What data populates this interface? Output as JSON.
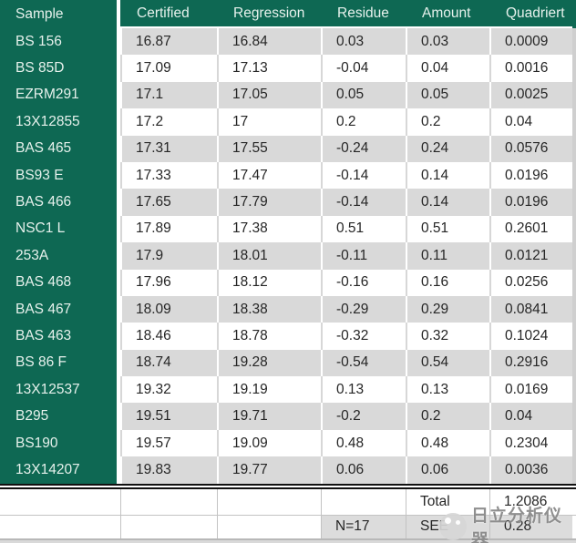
{
  "colors": {
    "green": "#0E6853",
    "row_gray": "#D9D9D9",
    "header_text": "#E6F1EC",
    "text": "#262626"
  },
  "table": {
    "headers": [
      "Sample",
      "Certified",
      "Regression",
      "Residue",
      "Amount",
      "Quadriert"
    ],
    "rows": [
      [
        "BS 156",
        "16.87",
        "16.84",
        "0.03",
        "0.03",
        "0.0009"
      ],
      [
        "BS 85D",
        "17.09",
        "17.13",
        "-0.04",
        "0.04",
        "0.0016"
      ],
      [
        "EZRM291",
        "17.1",
        "17.05",
        "0.05",
        "0.05",
        "0.0025"
      ],
      [
        "13X12855",
        "17.2",
        "17",
        "0.2",
        "0.2",
        "0.04"
      ],
      [
        "BAS 465",
        "17.31",
        "17.55",
        "-0.24",
        "0.24",
        "0.0576"
      ],
      [
        "BS93 E",
        "17.33",
        "17.47",
        "-0.14",
        "0.14",
        "0.0196"
      ],
      [
        "BAS 466",
        "17.65",
        "17.79",
        "-0.14",
        "0.14",
        "0.0196"
      ],
      [
        "NSC1 L",
        "17.89",
        "17.38",
        "0.51",
        "0.51",
        "0.2601"
      ],
      [
        "253A",
        "17.9",
        "18.01",
        "-0.11",
        "0.11",
        "0.0121"
      ],
      [
        "BAS 468",
        "17.96",
        "18.12",
        "-0.16",
        "0.16",
        "0.0256"
      ],
      [
        "BAS 467",
        "18.09",
        "18.38",
        "-0.29",
        "0.29",
        "0.0841"
      ],
      [
        "BAS 463",
        "18.46",
        "18.78",
        "-0.32",
        "0.32",
        "0.1024"
      ],
      [
        "BS 86 F",
        "18.74",
        "19.28",
        "-0.54",
        "0.54",
        "0.2916"
      ],
      [
        "13X12537",
        "19.32",
        "19.19",
        "0.13",
        "0.13",
        "0.0169"
      ],
      [
        "B295",
        "19.51",
        "19.71",
        "-0.2",
        "0.2",
        "0.04"
      ],
      [
        "BS190",
        "19.57",
        "19.09",
        "0.48",
        "0.48",
        "0.2304"
      ],
      [
        "13X14207",
        "19.83",
        "19.77",
        "0.06",
        "0.06",
        "0.0036"
      ]
    ],
    "summary": {
      "total_label": "Total",
      "total_value": "1.2086",
      "n_label": "N=17",
      "see_label": "SEE",
      "see_value": "0.28"
    }
  },
  "watermark": {
    "text": "日立分析仪器"
  }
}
